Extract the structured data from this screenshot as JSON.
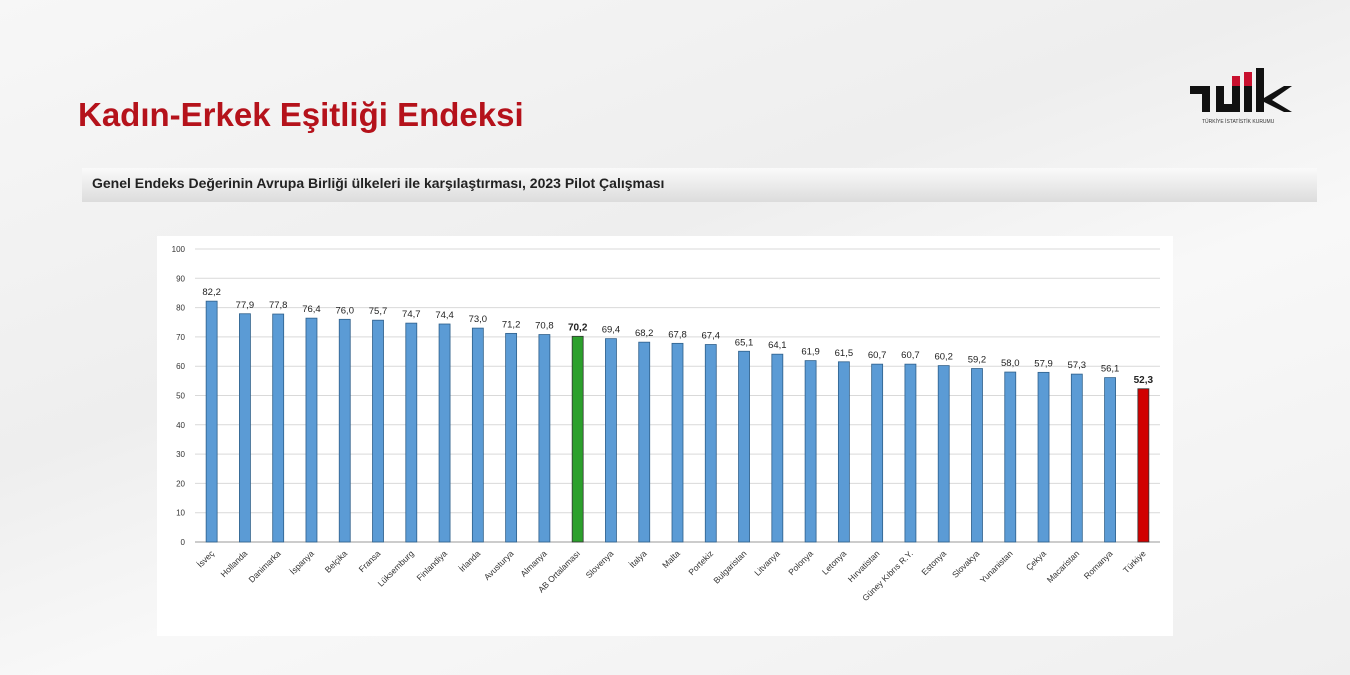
{
  "title": "Kadın-Erkek Eşitliği Endeksi",
  "subtitle": "Genel Endeks Değerinin Avrupa Birliği ülkeleri ile karşılaştırması, 2023 Pilot Çalışması",
  "logo": {
    "text": "TÜİK",
    "subtext": "TÜRKİYE İSTATİSTİK KURUMU"
  },
  "colors": {
    "title": "#b5121b",
    "bar": "#5b9bd5",
    "eu_average": "#2ca02c",
    "turkiye": "#d00000"
  },
  "chart_data": {
    "type": "bar",
    "title": "",
    "ylim": [
      0,
      100
    ],
    "yticks": [
      0,
      10,
      20,
      30,
      40,
      50,
      60,
      70,
      80,
      90,
      100
    ],
    "grid": true,
    "categories": [
      "İsveç",
      "Hollanda",
      "Danimarka",
      "İspanya",
      "Belçika",
      "Fransa",
      "Lüksemburg",
      "Finlandiya",
      "İrlanda",
      "Avusturya",
      "Almanya",
      "AB Ortalaması",
      "Slovenya",
      "İtalya",
      "Malta",
      "Portekiz",
      "Bulgaristan",
      "Litvanya",
      "Polonya",
      "Letonya",
      "Hırvatistan",
      "Güney Kıbrıs R.Y.",
      "Estonya",
      "Slovakya",
      "Yunanistan",
      "Çekya",
      "Macaristan",
      "Romanya",
      "Türkiye"
    ],
    "values": [
      82.2,
      77.9,
      77.8,
      76.4,
      76.0,
      75.7,
      74.7,
      74.4,
      73.0,
      71.2,
      70.8,
      70.2,
      69.4,
      68.2,
      67.8,
      67.4,
      65.1,
      64.1,
      61.9,
      61.5,
      60.7,
      60.7,
      60.2,
      59.2,
      58.0,
      57.9,
      57.3,
      56.1,
      52.3
    ],
    "labels": [
      "82,2",
      "77,9",
      "77,8",
      "76,4",
      "76,0",
      "75,7",
      "74,7",
      "74,4",
      "73,0",
      "71,2",
      "70,8",
      "70,2",
      "69,4",
      "68,2",
      "67,8",
      "67,4",
      "65,1",
      "64,1",
      "61,9",
      "61,5",
      "60,7",
      "60,7",
      "60,2",
      "59,2",
      "58,0",
      "57,9",
      "57,3",
      "56,1",
      "52,3"
    ],
    "highlight": {
      "AB Ortalaması": "eu_average",
      "Türkiye": "turkiye"
    }
  }
}
